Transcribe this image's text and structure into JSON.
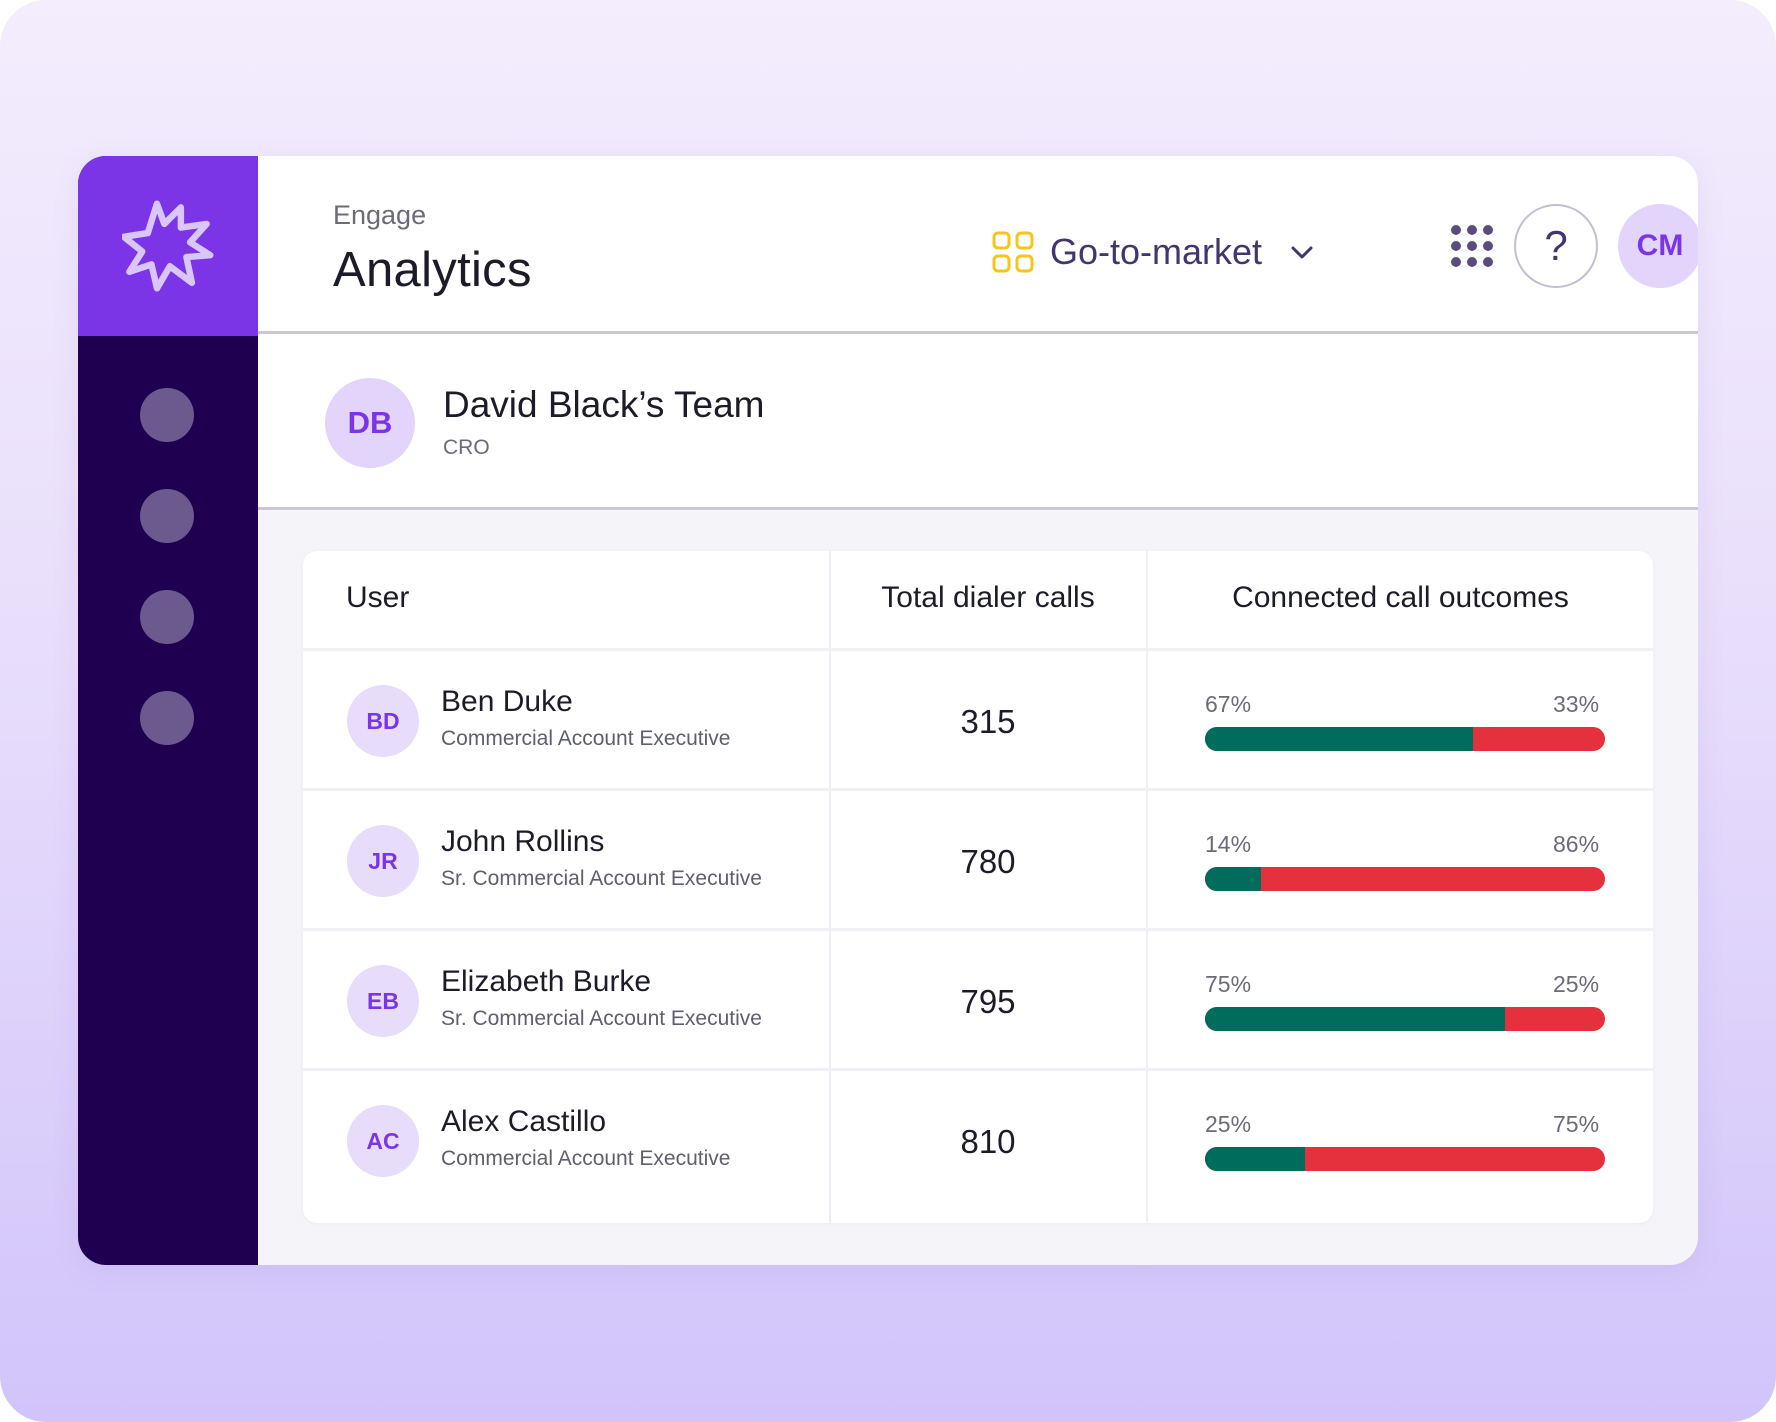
{
  "colors": {
    "brand": "#7c35e6",
    "sidebar": "#1f0050",
    "connected": "#006c5c",
    "not_connected": "#e5303d",
    "workspace_icon": "#f5c518"
  },
  "header": {
    "breadcrumb": "Engage",
    "title": "Analytics",
    "workspace": {
      "label": "Go-to-market",
      "icon": "grid-squares-icon",
      "chevron": "chevron-down-icon"
    },
    "apps_icon": "apps-grid-icon",
    "help_label": "?",
    "user_initials": "CM"
  },
  "sidebar": {
    "logo": "spark-logo-icon",
    "nav_items": 4
  },
  "team": {
    "initials": "DB",
    "name": "David Black’s Team",
    "role": "CRO"
  },
  "table": {
    "headers": {
      "user": "User",
      "calls": "Total dialer calls",
      "outcomes": "Connected call outcomes"
    },
    "rows": [
      {
        "initials": "BD",
        "name": "Ben Duke",
        "title": "Commercial Account Executive",
        "calls": "315",
        "connected_pct": 67,
        "left_label": "67%",
        "right_label": "33%"
      },
      {
        "initials": "JR",
        "name": "John Rollins",
        "title": "Sr. Commercial Account Executive",
        "calls": "780",
        "connected_pct": 14,
        "left_label": "14%",
        "right_label": "86%"
      },
      {
        "initials": "EB",
        "name": "Elizabeth Burke",
        "title": "Sr. Commercial Account Executive",
        "calls": "795",
        "connected_pct": 75,
        "left_label": "75%",
        "right_label": "25%"
      },
      {
        "initials": "AC",
        "name": "Alex Castillo",
        "title": "Commercial Account Executive",
        "calls": "810",
        "connected_pct": 25,
        "left_label": "25%",
        "right_label": "75%"
      }
    ]
  }
}
